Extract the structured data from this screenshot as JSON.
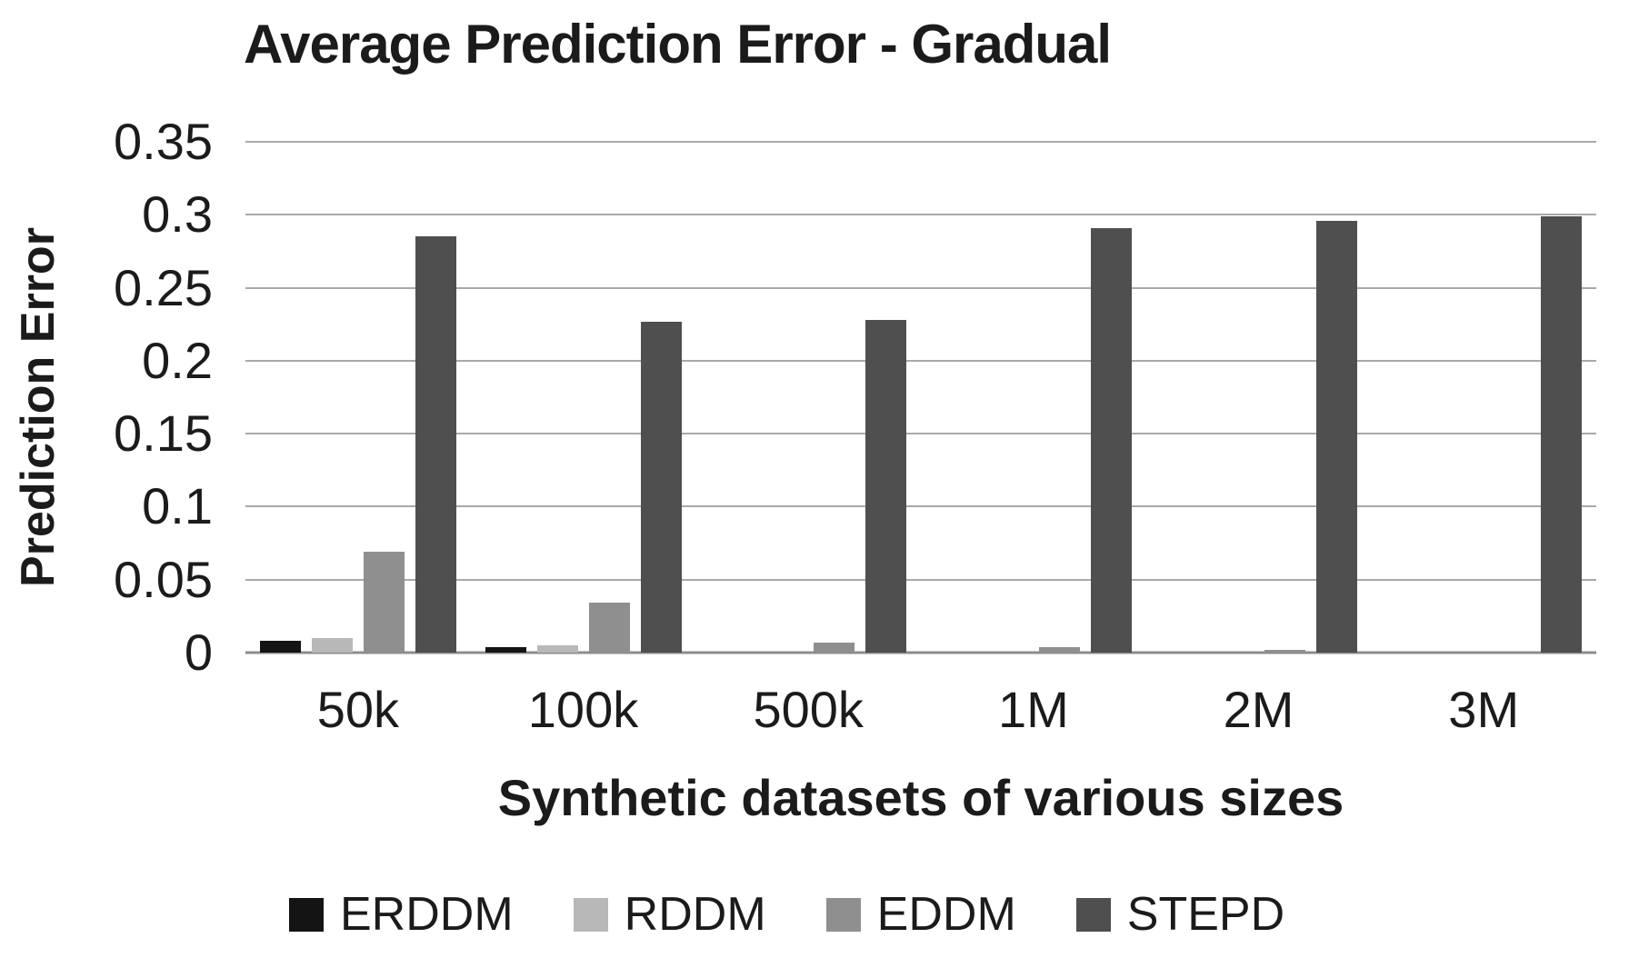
{
  "chart_data": {
    "type": "bar",
    "title": "Average Prediction Error - Gradual",
    "xlabel": "Synthetic datasets of various sizes",
    "ylabel": "Prediction Error",
    "categories": [
      "50k",
      "100k",
      "500k",
      "1M",
      "2M",
      "3M"
    ],
    "series": [
      {
        "name": "ERDDM",
        "color": "#141414",
        "values": [
          0.008,
          0.004,
          0,
          0,
          0,
          0
        ]
      },
      {
        "name": "RDDM",
        "color": "#b8b8b8",
        "values": [
          0.01,
          0.005,
          0,
          0,
          0,
          0
        ]
      },
      {
        "name": "EDDM",
        "color": "#8f8f8f",
        "values": [
          0.069,
          0.034,
          0.007,
          0.004,
          0.002,
          0
        ]
      },
      {
        "name": "STEPD",
        "color": "#4f4f4f",
        "values": [
          0.285,
          0.227,
          0.228,
          0.291,
          0.296,
          0.299
        ]
      }
    ],
    "ylim": [
      0,
      0.35
    ],
    "yticks": [
      {
        "value": 0.35,
        "label": "0.35"
      },
      {
        "value": 0.3,
        "label": "0.3"
      },
      {
        "value": 0.25,
        "label": "0.25"
      },
      {
        "value": 0.2,
        "label": "0.2"
      },
      {
        "value": 0.15,
        "label": "0.15"
      },
      {
        "value": 0.1,
        "label": "0.1"
      },
      {
        "value": 0.05,
        "label": "0.05"
      },
      {
        "value": 0,
        "label": "0"
      }
    ],
    "grid": "horizontal",
    "legend_position": "bottom",
    "colors": {
      "gridline": "#a9a9a9",
      "axis_line": "#8c8c8c",
      "text": "#1b1b1b",
      "background": "#ffffff"
    }
  }
}
